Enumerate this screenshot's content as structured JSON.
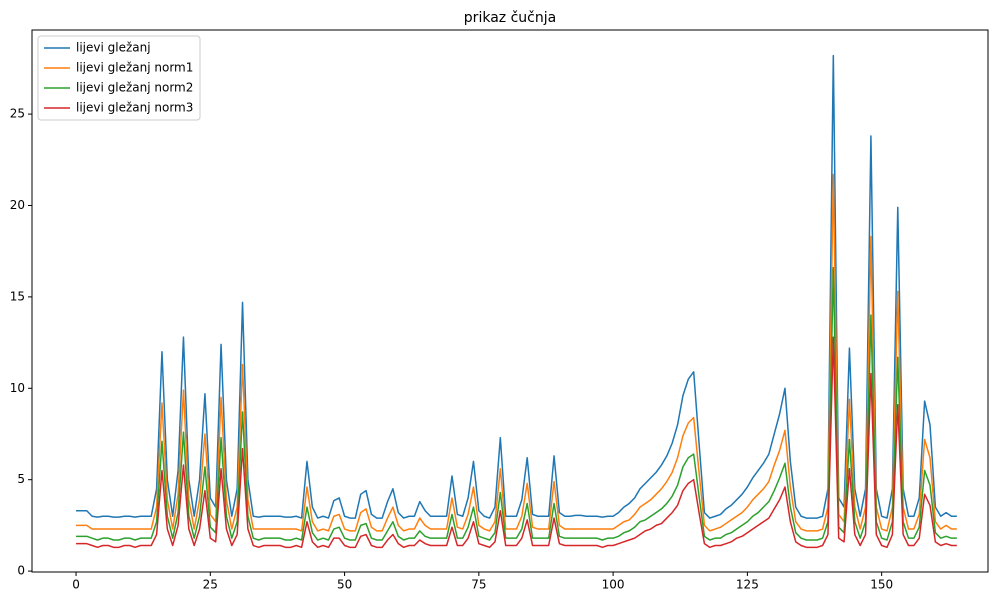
{
  "chart_data": {
    "type": "line",
    "title": "prikaz čučnja",
    "x": [
      0,
      1,
      2,
      3,
      4,
      5,
      6,
      7,
      8,
      9,
      10,
      11,
      12,
      13,
      14,
      15,
      16,
      17,
      18,
      19,
      20,
      21,
      22,
      23,
      24,
      25,
      26,
      27,
      28,
      29,
      30,
      31,
      32,
      33,
      34,
      35,
      36,
      37,
      38,
      39,
      40,
      41,
      42,
      43,
      44,
      45,
      46,
      47,
      48,
      49,
      50,
      51,
      52,
      53,
      54,
      55,
      56,
      57,
      58,
      59,
      60,
      61,
      62,
      63,
      64,
      65,
      66,
      67,
      68,
      69,
      70,
      71,
      72,
      73,
      74,
      75,
      76,
      77,
      78,
      79,
      80,
      81,
      82,
      83,
      84,
      85,
      86,
      87,
      88,
      89,
      90,
      91,
      92,
      93,
      94,
      95,
      96,
      97,
      98,
      99,
      100,
      101,
      102,
      103,
      104,
      105,
      106,
      107,
      108,
      109,
      110,
      111,
      112,
      113,
      114,
      115,
      116,
      117,
      118,
      119,
      120,
      121,
      122,
      123,
      124,
      125,
      126,
      127,
      128,
      129,
      130,
      131,
      132,
      133,
      134,
      135,
      136,
      137,
      138,
      139,
      140,
      141,
      142,
      143,
      144,
      145,
      146,
      147,
      148,
      149,
      150,
      151,
      152,
      153,
      154,
      155,
      156,
      157,
      158,
      159,
      160,
      161,
      162,
      163,
      164
    ],
    "series": [
      {
        "name": "lijevi gležanj",
        "color": "#1f77b4",
        "values": [
          3.3,
          3.3,
          3.3,
          3.0,
          2.95,
          3.0,
          3.0,
          2.95,
          2.95,
          3.0,
          3.0,
          2.95,
          3.0,
          3.0,
          3.0,
          4.5,
          12.0,
          5.0,
          3.0,
          5.5,
          12.8,
          5.0,
          3.0,
          5.0,
          9.7,
          4.0,
          3.5,
          12.4,
          5.0,
          3.0,
          4.5,
          14.7,
          5.0,
          3.0,
          2.95,
          3.0,
          3.0,
          3.0,
          3.0,
          2.95,
          2.95,
          3.0,
          2.9,
          6.0,
          3.5,
          2.9,
          3.0,
          2.9,
          3.85,
          4.0,
          3.0,
          2.9,
          2.9,
          4.2,
          4.4,
          3.1,
          2.9,
          2.9,
          3.8,
          4.5,
          3.2,
          2.9,
          3.0,
          3.0,
          3.8,
          3.3,
          3.0,
          3.0,
          3.0,
          3.0,
          5.2,
          3.1,
          3.0,
          4.0,
          6.0,
          3.3,
          3.0,
          2.9,
          3.5,
          7.3,
          3.0,
          3.0,
          3.0,
          3.9,
          6.2,
          3.1,
          3.0,
          3.0,
          3.0,
          6.3,
          3.2,
          3.0,
          3.0,
          3.05,
          3.05,
          3.0,
          3.0,
          3.0,
          2.95,
          3.0,
          3.0,
          3.2,
          3.5,
          3.7,
          4.0,
          4.5,
          4.8,
          5.1,
          5.4,
          5.8,
          6.3,
          7.0,
          8.0,
          9.6,
          10.5,
          10.9,
          7.0,
          3.2,
          2.9,
          3.0,
          3.1,
          3.4,
          3.6,
          3.9,
          4.2,
          4.6,
          5.1,
          5.5,
          5.9,
          6.4,
          7.5,
          8.6,
          10.0,
          6.0,
          3.5,
          3.0,
          2.9,
          2.9,
          2.9,
          3.0,
          4.5,
          28.2,
          4.0,
          3.5,
          12.2,
          4.5,
          3.0,
          4.5,
          23.8,
          4.5,
          3.0,
          2.9,
          4.5,
          19.9,
          4.5,
          3.0,
          3.0,
          4.0,
          9.3,
          8.0,
          3.5,
          3.0,
          3.2,
          3.0,
          3.0
        ]
      },
      {
        "name": "lijevi gležanj norm1",
        "color": "#ff7f0e",
        "values": [
          2.5,
          2.5,
          2.5,
          2.3,
          2.3,
          2.3,
          2.3,
          2.3,
          2.3,
          2.3,
          2.3,
          2.3,
          2.3,
          2.3,
          2.3,
          3.5,
          9.2,
          3.9,
          2.3,
          4.2,
          9.9,
          3.9,
          2.3,
          3.9,
          7.5,
          3.1,
          2.7,
          9.5,
          3.9,
          2.3,
          3.5,
          11.3,
          3.9,
          2.3,
          2.3,
          2.3,
          2.3,
          2.3,
          2.3,
          2.3,
          2.3,
          2.3,
          2.2,
          4.6,
          2.7,
          2.2,
          2.3,
          2.2,
          3.0,
          3.1,
          2.3,
          2.2,
          2.2,
          3.2,
          3.4,
          2.4,
          2.2,
          2.2,
          2.9,
          3.5,
          2.5,
          2.2,
          2.3,
          2.3,
          2.9,
          2.5,
          2.3,
          2.3,
          2.3,
          2.3,
          4.0,
          2.4,
          2.3,
          3.1,
          4.6,
          2.5,
          2.3,
          2.2,
          2.7,
          5.6,
          2.3,
          2.3,
          2.3,
          3.0,
          4.8,
          2.4,
          2.3,
          2.3,
          2.3,
          4.9,
          2.5,
          2.3,
          2.3,
          2.3,
          2.3,
          2.3,
          2.3,
          2.3,
          2.3,
          2.3,
          2.3,
          2.5,
          2.7,
          2.8,
          3.1,
          3.5,
          3.7,
          3.9,
          4.2,
          4.5,
          4.9,
          5.4,
          6.2,
          7.4,
          8.1,
          8.4,
          5.4,
          2.5,
          2.2,
          2.3,
          2.4,
          2.6,
          2.8,
          3.0,
          3.2,
          3.5,
          3.9,
          4.2,
          4.5,
          4.9,
          5.8,
          6.6,
          7.7,
          4.6,
          2.7,
          2.3,
          2.2,
          2.2,
          2.2,
          2.3,
          3.5,
          21.7,
          3.1,
          2.7,
          9.4,
          3.5,
          2.3,
          3.5,
          18.3,
          3.5,
          2.3,
          2.2,
          3.5,
          15.3,
          3.5,
          2.3,
          2.3,
          3.1,
          7.2,
          6.2,
          2.7,
          2.3,
          2.5,
          2.3,
          2.3
        ]
      },
      {
        "name": "lijevi gležanj norm2",
        "color": "#2ca02c",
        "values": [
          1.9,
          1.9,
          1.9,
          1.8,
          1.7,
          1.8,
          1.8,
          1.7,
          1.7,
          1.8,
          1.8,
          1.7,
          1.8,
          1.8,
          1.8,
          2.7,
          7.1,
          3.0,
          1.8,
          3.2,
          7.6,
          3.0,
          1.8,
          3.0,
          5.7,
          2.4,
          2.1,
          7.3,
          3.0,
          1.8,
          2.7,
          8.7,
          3.0,
          1.8,
          1.7,
          1.8,
          1.8,
          1.8,
          1.8,
          1.7,
          1.7,
          1.8,
          1.7,
          3.5,
          2.1,
          1.7,
          1.8,
          1.7,
          2.3,
          2.4,
          1.8,
          1.7,
          1.7,
          2.5,
          2.6,
          1.8,
          1.7,
          1.7,
          2.2,
          2.7,
          1.9,
          1.7,
          1.8,
          1.8,
          2.2,
          1.9,
          1.8,
          1.8,
          1.8,
          1.8,
          3.1,
          1.8,
          1.8,
          2.4,
          3.5,
          1.9,
          1.8,
          1.7,
          2.1,
          4.3,
          1.8,
          1.8,
          1.8,
          2.3,
          3.7,
          1.8,
          1.8,
          1.8,
          1.8,
          3.7,
          1.9,
          1.8,
          1.8,
          1.8,
          1.8,
          1.8,
          1.8,
          1.8,
          1.7,
          1.8,
          1.8,
          1.9,
          2.1,
          2.2,
          2.4,
          2.7,
          2.8,
          3.0,
          3.2,
          3.4,
          3.7,
          4.1,
          4.7,
          5.7,
          6.2,
          6.4,
          4.1,
          1.9,
          1.7,
          1.8,
          1.8,
          2.0,
          2.1,
          2.3,
          2.5,
          2.7,
          3.0,
          3.2,
          3.5,
          3.8,
          4.4,
          5.1,
          5.9,
          3.5,
          2.1,
          1.8,
          1.7,
          1.7,
          1.7,
          1.8,
          2.7,
          16.6,
          2.4,
          2.1,
          7.2,
          2.7,
          1.8,
          2.7,
          14.0,
          2.7,
          1.8,
          1.7,
          2.7,
          11.7,
          2.7,
          1.8,
          1.8,
          2.4,
          5.5,
          4.7,
          2.1,
          1.8,
          1.9,
          1.8,
          1.8
        ]
      },
      {
        "name": "lijevi gležanj norm3",
        "color": "#d62728",
        "values": [
          1.5,
          1.5,
          1.5,
          1.4,
          1.3,
          1.4,
          1.4,
          1.3,
          1.3,
          1.4,
          1.4,
          1.3,
          1.4,
          1.4,
          1.4,
          2.0,
          5.5,
          2.3,
          1.4,
          2.5,
          5.8,
          2.3,
          1.4,
          2.3,
          4.4,
          1.8,
          1.6,
          5.6,
          2.3,
          1.4,
          2.0,
          6.7,
          2.3,
          1.4,
          1.3,
          1.4,
          1.4,
          1.4,
          1.4,
          1.3,
          1.3,
          1.4,
          1.3,
          2.7,
          1.6,
          1.3,
          1.4,
          1.3,
          1.8,
          1.8,
          1.4,
          1.3,
          1.3,
          1.9,
          2.0,
          1.4,
          1.3,
          1.3,
          1.7,
          2.0,
          1.5,
          1.3,
          1.4,
          1.4,
          1.7,
          1.5,
          1.4,
          1.4,
          1.4,
          1.4,
          2.4,
          1.4,
          1.4,
          1.8,
          2.7,
          1.5,
          1.4,
          1.3,
          1.6,
          3.3,
          1.4,
          1.4,
          1.4,
          1.8,
          2.8,
          1.4,
          1.4,
          1.4,
          1.4,
          2.9,
          1.5,
          1.4,
          1.4,
          1.4,
          1.4,
          1.4,
          1.4,
          1.4,
          1.3,
          1.4,
          1.4,
          1.5,
          1.6,
          1.7,
          1.8,
          2.0,
          2.2,
          2.3,
          2.5,
          2.6,
          2.9,
          3.2,
          3.6,
          4.4,
          4.8,
          5.0,
          3.2,
          1.5,
          1.3,
          1.4,
          1.4,
          1.5,
          1.6,
          1.8,
          1.9,
          2.1,
          2.3,
          2.5,
          2.7,
          2.9,
          3.4,
          3.9,
          4.6,
          2.7,
          1.6,
          1.4,
          1.3,
          1.3,
          1.3,
          1.4,
          2.0,
          12.8,
          1.8,
          1.6,
          5.6,
          2.0,
          1.4,
          2.0,
          10.8,
          2.0,
          1.4,
          1.3,
          2.0,
          9.1,
          2.0,
          1.4,
          1.4,
          1.8,
          4.2,
          3.6,
          1.6,
          1.4,
          1.5,
          1.4,
          1.4
        ]
      }
    ],
    "xlim": [
      -8.2,
      169.8
    ],
    "ylim": [
      -0.05,
      29.6
    ],
    "xticks": [
      0,
      25,
      50,
      75,
      100,
      125,
      150
    ],
    "yticks": [
      0,
      5,
      10,
      15,
      20,
      25
    ],
    "legend": "upper left"
  }
}
